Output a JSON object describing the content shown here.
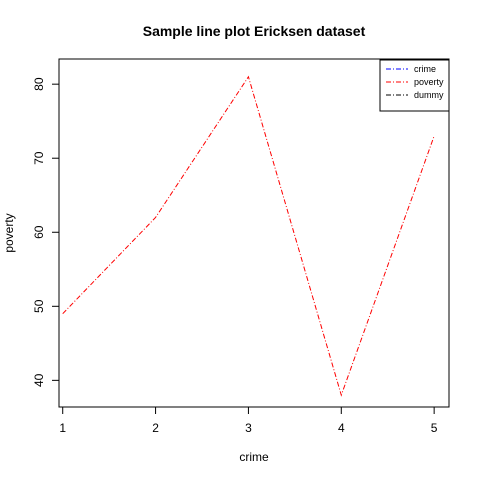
{
  "chart_data": {
    "type": "line",
    "title": "Sample line plot  Ericksen dataset",
    "xlabel": "crime",
    "ylabel": "poverty",
    "x": [
      1,
      2,
      3,
      4,
      5
    ],
    "x_ticks": [
      "1",
      "2",
      "3",
      "4",
      "5"
    ],
    "y_ticks": [
      "40",
      "50",
      "60",
      "70",
      "80"
    ],
    "xlim": [
      0.96,
      5.16
    ],
    "ylim": [
      36.4,
      83.4
    ],
    "grid": false,
    "legend_position": "top-right",
    "series": [
      {
        "name": "poverty",
        "values": [
          49,
          62,
          81,
          38,
          73
        ],
        "color": "#ff0000",
        "line_style": "dashdot"
      }
    ],
    "legend": [
      {
        "name": "crime",
        "color": "#0000ff",
        "line_style": "dashdot"
      },
      {
        "name": "poverty",
        "color": "#ff0000",
        "line_style": "dashdot"
      },
      {
        "name": "dummy",
        "color": "#000000",
        "line_style": "dashdot"
      }
    ]
  }
}
